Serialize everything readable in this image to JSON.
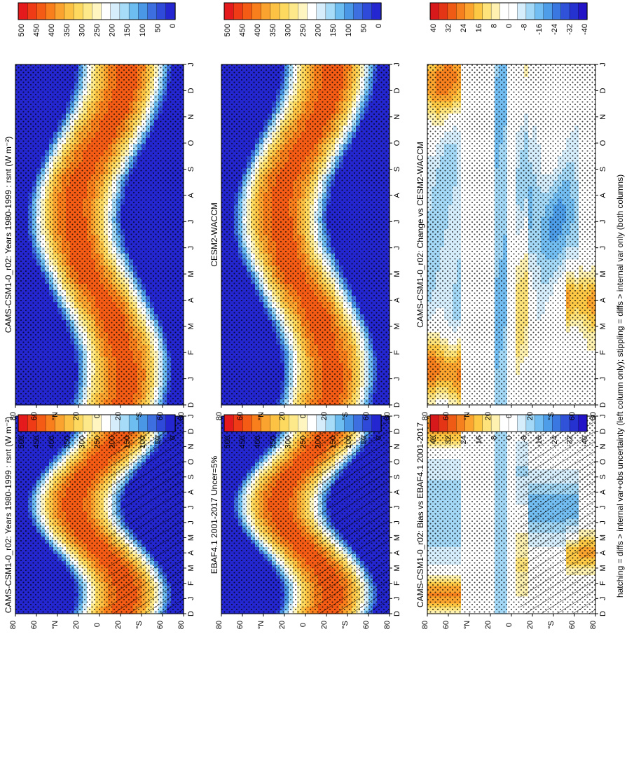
{
  "figure": {
    "footnote": "hatching = diffs > internal var+obs uncertainty (left column only); stippling = diffs > internal var only (both columns)"
  },
  "colors": {
    "abs_scale": [
      "#e41a1c",
      "#ef3b16",
      "#f45b14",
      "#f87f1c",
      "#fba32f",
      "#fcc244",
      "#fdd95f",
      "#fde98a",
      "#fef5c0",
      "#ffffff",
      "#d6eefc",
      "#a6dcf7",
      "#6ebdf0",
      "#4a97e6",
      "#3d6fe0",
      "#2f49d8",
      "#2427cf"
    ],
    "diff_scale": [
      "#d7191c",
      "#e53517",
      "#ef5a14",
      "#f6801d",
      "#fba52f",
      "#fdc945",
      "#fee37a",
      "#fff2b0",
      "#ffffff",
      "#ffffff",
      "#d6eefc",
      "#a3d8f6",
      "#72bdf1",
      "#4d9de9",
      "#3a77e1",
      "#2f52d9",
      "#2632cf",
      "#2314c8"
    ]
  },
  "chart_data": [
    {
      "type": "heatmap",
      "panel": "top-left",
      "title": "CAMS-CSM1-0_r02: Years 1980-1999 : rsnt (W m⁻²)",
      "x_ticks": [
        "D",
        "J",
        "F",
        "M",
        "A",
        "M",
        "J",
        "J",
        "A",
        "S",
        "O",
        "N",
        "D",
        "J"
      ],
      "y_ticks": [
        "80",
        "60",
        "°N",
        "20",
        "0",
        "20",
        "°S",
        "60",
        "80"
      ],
      "colorbar_ticks": [
        "500",
        "450",
        "400",
        "350",
        "300",
        "250",
        "200",
        "150",
        "100",
        "50",
        "0"
      ],
      "hatching": true,
      "stippling": true
    },
    {
      "type": "heatmap",
      "panel": "top-right",
      "title": "CAMS-CSM1-0_r02: Years 1980-1999 : rsnt (W m⁻²)",
      "x_ticks": [
        "D",
        "J",
        "F",
        "M",
        "A",
        "M",
        "J",
        "J",
        "A",
        "S",
        "O",
        "N",
        "D",
        "J"
      ],
      "y_ticks": [
        "80",
        "60",
        "°N",
        "20",
        "0",
        "20",
        "°S",
        "60",
        "80"
      ],
      "colorbar_ticks": [
        "500",
        "450",
        "400",
        "350",
        "300",
        "250",
        "200",
        "150",
        "100",
        "50",
        "0"
      ],
      "hatching": false,
      "stippling": true
    },
    {
      "type": "heatmap",
      "panel": "middle-left",
      "title": "EBAF4.1 2001-2017 Uncer=5%",
      "x_ticks": [
        "D",
        "J",
        "F",
        "M",
        "A",
        "M",
        "J",
        "J",
        "A",
        "S",
        "O",
        "N",
        "D",
        "J"
      ],
      "y_ticks": [
        "80",
        "60",
        "°N",
        "20",
        "0",
        "20",
        "°S",
        "60",
        "80"
      ],
      "colorbar_ticks": [
        "500",
        "450",
        "400",
        "350",
        "300",
        "250",
        "200",
        "150",
        "100",
        "50",
        "0"
      ],
      "hatching": true,
      "stippling": true
    },
    {
      "type": "heatmap",
      "panel": "middle-right",
      "title": "CESM2-WACCM",
      "x_ticks": [
        "D",
        "J",
        "F",
        "M",
        "A",
        "M",
        "J",
        "J",
        "A",
        "S",
        "O",
        "N",
        "D",
        "J"
      ],
      "y_ticks": [
        "80",
        "60",
        "°N",
        "20",
        "0",
        "20",
        "°S",
        "60",
        "80"
      ],
      "colorbar_ticks": [
        "500",
        "450",
        "400",
        "350",
        "300",
        "250",
        "200",
        "150",
        "100",
        "50",
        "0"
      ],
      "hatching": false,
      "stippling": true
    },
    {
      "type": "heatmap",
      "panel": "bottom-left",
      "title": "CAMS-CSM1-0_r02: Bias vs EBAF4.1 2001-2017",
      "x_ticks": [
        "D",
        "J",
        "F",
        "M",
        "A",
        "M",
        "J",
        "J",
        "A",
        "S",
        "O",
        "N",
        "D",
        "J"
      ],
      "y_ticks": [
        "80",
        "60",
        "°N",
        "20",
        "0",
        "20",
        "°S",
        "60",
        "80"
      ],
      "colorbar_ticks": [
        "40",
        "32",
        "24",
        "16",
        "8",
        "0",
        "-8",
        "-16",
        "-24",
        "-32",
        "-40"
      ],
      "hatching": true,
      "stippling": true
    },
    {
      "type": "heatmap",
      "panel": "bottom-right",
      "title": "CAMS-CSM1-0_r02: Change vs CESM2-WACCM",
      "x_ticks": [
        "D",
        "J",
        "F",
        "M",
        "A",
        "M",
        "J",
        "J",
        "A",
        "S",
        "O",
        "N",
        "D",
        "J"
      ],
      "y_ticks": [
        "80",
        "60",
        "°N",
        "20",
        "0",
        "20",
        "°S",
        "60",
        "80"
      ],
      "colorbar_ticks": [
        "40",
        "32",
        "24",
        "16",
        "8",
        "0",
        "-8",
        "-16",
        "-24",
        "-32",
        "-40"
      ],
      "hatching": false,
      "stippling": true
    }
  ]
}
